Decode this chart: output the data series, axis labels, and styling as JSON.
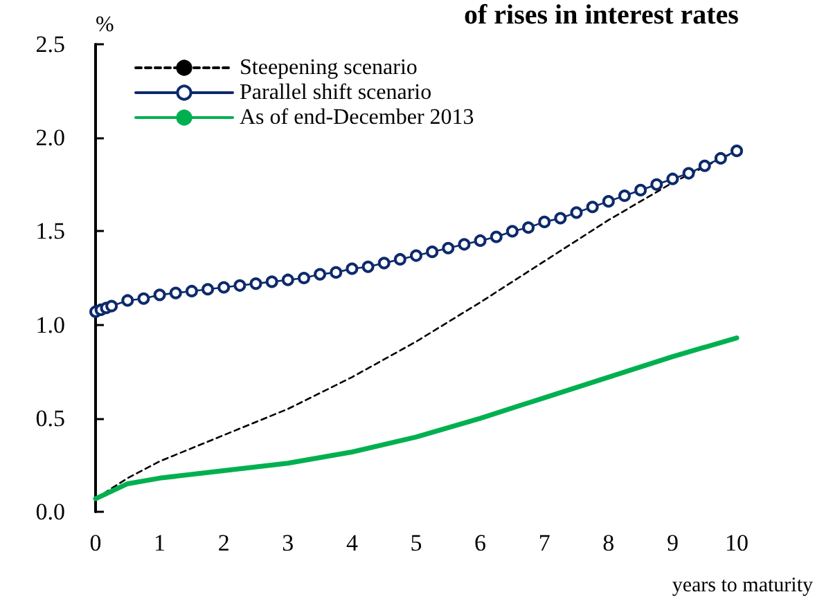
{
  "chart_data": {
    "type": "line",
    "title": "of rises in interest rates",
    "ylabel": "%",
    "xlabel": "years to maturity",
    "xlim": [
      0,
      10
    ],
    "xticks": [
      0,
      1,
      2,
      3,
      4,
      5,
      6,
      7,
      8,
      9,
      10
    ],
    "ylim": [
      0,
      2.5
    ],
    "yticks": [
      {
        "value": 0,
        "label": "0.0"
      },
      0.5,
      {
        "value": 1,
        "label": "1.0"
      },
      1.5,
      {
        "value": 2,
        "label": "2.0"
      },
      2.5
    ],
    "grid": false,
    "legend": "top left",
    "series": [
      {
        "name": "Steepening scenario",
        "color": "#000000",
        "line_style": "dashed",
        "marker": "none",
        "x": [
          0,
          0.5,
          1,
          2,
          3,
          4,
          5,
          6,
          7,
          8,
          9,
          10
        ],
        "values": [
          0.07,
          0.18,
          0.27,
          0.41,
          0.55,
          0.72,
          0.91,
          1.12,
          1.34,
          1.56,
          1.76,
          1.93
        ]
      },
      {
        "name": "Parallel shift scenario",
        "color": "#0d2a6b",
        "line_style": "solid",
        "marker": "circle",
        "x": [
          0,
          0.083,
          0.167,
          0.25,
          0.5,
          0.75,
          1,
          1.25,
          1.5,
          1.75,
          2,
          2.25,
          2.5,
          2.75,
          3,
          3.25,
          3.5,
          3.75,
          4,
          4.25,
          4.5,
          4.75,
          5,
          5.25,
          5.5,
          5.75,
          6,
          6.25,
          6.5,
          6.75,
          7,
          7.25,
          7.5,
          7.75,
          8,
          8.25,
          8.5,
          8.75,
          9,
          9.25,
          9.5,
          9.75,
          10
        ],
        "values": [
          1.07,
          1.08,
          1.09,
          1.1,
          1.13,
          1.14,
          1.16,
          1.17,
          1.18,
          1.19,
          1.2,
          1.21,
          1.22,
          1.23,
          1.24,
          1.25,
          1.27,
          1.28,
          1.3,
          1.31,
          1.33,
          1.35,
          1.37,
          1.39,
          1.41,
          1.43,
          1.45,
          1.47,
          1.5,
          1.52,
          1.55,
          1.57,
          1.6,
          1.63,
          1.66,
          1.69,
          1.72,
          1.75,
          1.78,
          1.81,
          1.85,
          1.89,
          1.93
        ]
      },
      {
        "name": "As of end-December 2013",
        "color": "#00b050",
        "line_style": "solid",
        "marker": "none",
        "x": [
          0,
          0.5,
          1,
          2,
          3,
          4,
          5,
          6,
          7,
          8,
          9,
          10
        ],
        "values": [
          0.07,
          0.15,
          0.18,
          0.22,
          0.26,
          0.32,
          0.4,
          0.5,
          0.61,
          0.72,
          0.83,
          0.93
        ]
      }
    ]
  }
}
